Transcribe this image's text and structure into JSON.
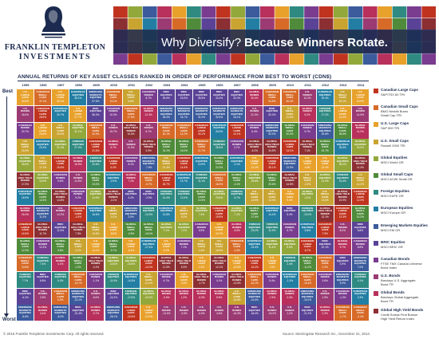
{
  "brand": {
    "line1": "FRANKLIN TEMPLETON",
    "line2": "INVESTMENTS"
  },
  "banner": {
    "title_light": "Why Diversify?",
    "title_bold": "Because Winners Rotate."
  },
  "heading": "ANNUAL RETURNS OF KEY ASSET CLASSES RANKED IN ORDER OF PERFORMANCE FROM BEST TO WORST (CDN$)",
  "axis": {
    "best": "Best",
    "worst": "Worst"
  },
  "footer": {
    "copyright": "© 2015 Franklin Templeton Investments Corp. All rights reserved.",
    "source": "Source: Morningstar Research Inc., December 31, 2014."
  },
  "colors": {
    "navy": "#1b2a4e",
    "cols": {
      "CLC": "#c0331f",
      "CSC": "#d76a27",
      "USLC": "#e8a12b",
      "USSC": "#c9a431",
      "GE": "#93a83a",
      "GSC": "#4f8b3a",
      "FE": "#2f8a82",
      "EE": "#237ea3",
      "EME": "#3b5b9c",
      "BRIC": "#5a4396",
      "CB": "#7a3c8f",
      "USB": "#9b3a73",
      "GB": "#b8305b",
      "GHY": "#8c2f33"
    }
  },
  "chart_data": {
    "type": "table",
    "title": "ANNUAL RETURNS OF KEY ASSET CLASSES RANKED IN ORDER OF PERFORMANCE FROM BEST TO WORST (CDN$)",
    "years": [
      "1995",
      "1996",
      "1997",
      "1998",
      "1999",
      "2000",
      "2001",
      "2002",
      "2003",
      "2004",
      "2005",
      "2006",
      "2007",
      "2008",
      "2009",
      "2010",
      "2011",
      "2012",
      "2013",
      "2014"
    ],
    "asset_classes": [
      {
        "code": "CLC",
        "short": "CANADIAN\nLARGE\nCAPS",
        "name": "Canadian Large Caps",
        "index": "S&P/TSX 60 TRI"
      },
      {
        "code": "CSC",
        "short": "CANADIAN\nSMALL\nCAPS",
        "name": "Canadian Small Caps",
        "index": "BMO Nesbitt Burns\nSmall Cap TRI"
      },
      {
        "code": "USLC",
        "short": "U.S.\nLARGE\nCAPS",
        "name": "U.S. Large Caps",
        "index": "S&P 500 TRI"
      },
      {
        "code": "USSC",
        "short": "U.S.\nSMALL\nCAPS",
        "name": "U.S. Small Caps",
        "index": "Russell 2000 TRI"
      },
      {
        "code": "GE",
        "short": "GLOBAL\nEQUITIES",
        "name": "Global Equities",
        "index": "MSCI World GR"
      },
      {
        "code": "GSC",
        "short": "GLOBAL\nSMALL\nCAPS",
        "name": "Global Small Caps",
        "index": "MSCI ACWI Small GR"
      },
      {
        "code": "FE",
        "short": "FOREIGN\nEQUITIES",
        "name": "Foreign Equities",
        "index": "MSCI EAFE GR"
      },
      {
        "code": "EE",
        "short": "EUROPEAN\nEQUITIES",
        "name": "European Equities",
        "index": "MSCI Europe GR"
      },
      {
        "code": "EME",
        "short": "EMERGING\nMARKETS\nEQUITIES",
        "name": "Emerging Markets Equities",
        "index": "MSCI EM GR"
      },
      {
        "code": "BRIC",
        "short": "BRIC\nEQUITIES",
        "name": "BRIC Equities",
        "index": "MSCI BRIC GR"
      },
      {
        "code": "CB",
        "short": "CANADIAN\nBONDS",
        "name": "Canadian Bonds",
        "index": "FTSE TMX Canada Universe\nBond Index"
      },
      {
        "code": "USB",
        "short": "U.S.\nBONDS",
        "name": "U.S. Bonds",
        "index": "Barclays U.S. Aggregate\nBond TR"
      },
      {
        "code": "GB",
        "short": "GLOBAL\nBONDS",
        "name": "Global Bonds",
        "index": "Barclays Global Aggregate\nBond TR"
      },
      {
        "code": "GHY",
        "short": "GLOBAL\nHIGH YIELD\nBONDS",
        "name": "Global High Yield Bonds",
        "index": "Credit Suisse First Boston\nHigh Yield Return Index"
      }
    ],
    "rankings": [
      {
        "year": "1995",
        "order": [
          "USLC",
          "USB",
          "CB",
          "USSC",
          "GE",
          "GHY",
          "EE",
          "GB",
          "CLC",
          "GSC",
          "CSC",
          "FE",
          "BRIC",
          "EME"
        ],
        "returns": [
          "33.9%",
          "26.6%",
          "20.7%",
          "24.9%",
          "18.5%",
          "17.0%",
          "16.9%",
          "16.4%",
          "14.5%",
          "12.3%",
          "10.6%",
          "7.7%",
          "-6.2%",
          "-8.6%"
        ]
      },
      {
        "year": "1996",
        "order": [
          "CSC",
          "CLC",
          "USLC",
          "EE",
          "USSC",
          "GE",
          "GSC",
          "EME",
          "GHY",
          "CB",
          "FE",
          "BRIC",
          "USB",
          "GB"
        ],
        "returns": [
          "37.1%",
          "28.6%",
          "23.6%",
          "23.3%",
          "17.1%",
          "14.9%",
          "12.6%",
          "11.3%",
          "11.7%",
          "12.3%",
          "7.4%",
          "6.8%",
          "3.9%",
          "3.4%"
        ]
      },
      {
        "year": "1997",
        "order": [
          "USLC",
          "EE",
          "USSC",
          "GE",
          "CLC",
          "CB",
          "GHY",
          "USB",
          "BRIC",
          "GSC",
          "GB",
          "FE",
          "CSC",
          "EME"
        ],
        "returns": [
          "39.1%",
          "29.7%",
          "26.6%",
          "21.3%",
          "15.6%",
          "9.6%",
          "14.8%",
          "14.2%",
          "11.5%",
          "5.8%",
          "4.1%",
          "6.3%",
          "6.9%",
          "-8.2%"
        ]
      },
      {
        "year": "1998",
        "order": [
          "EE",
          "USLC",
          "GE",
          "FE",
          "GB",
          "USB",
          "CB",
          "CLC",
          "GHY",
          "USSC",
          "GSC",
          "CSC",
          "EME",
          "BRIC"
        ],
        "returns": [
          "38.1%",
          "37.7%",
          "31.1%",
          "27.0%",
          "16.6%",
          "14.5%",
          "9.2%",
          "-1.6%",
          "7.3%",
          "4.1%",
          "1.2%",
          "-16.7%",
          "-22.1%",
          "-31.4%"
        ]
      },
      {
        "year": "1999",
        "order": [
          "EME",
          "BRIC",
          "CSC",
          "CLC",
          "FE",
          "GSC",
          "GE",
          "EE",
          "USSC",
          "USLC",
          "GHY",
          "CB",
          "USB",
          "GB"
        ],
        "returns": [
          "57.6%",
          "56.3%",
          "20.3%",
          "31.6%",
          "20.6%",
          "23.0%",
          "14.6%",
          "16.6%",
          "14.5%",
          "14.1%",
          "-2.4%",
          "-1.1%",
          "-5.6%",
          "-9.7%"
        ]
      },
      {
        "year": "2000",
        "order": [
          "CSC",
          "CB",
          "USB",
          "GB",
          "CLC",
          "EE",
          "GHY",
          "USSC",
          "USLC",
          "GSC",
          "GE",
          "FE",
          "BRIC",
          "EME"
        ],
        "returns": [
          "13.1%",
          "10.3%",
          "15.7%",
          "8.7%",
          "6.2%",
          "-2.9%",
          "-3.1%",
          "-0.2%",
          "-5.5%",
          "-9.7%",
          "-10.6%",
          "-11.6%",
          "-24.3%",
          "-28.1%"
        ]
      },
      {
        "year": "2001",
        "order": [
          "USSC",
          "CSC",
          "GHY",
          "USB",
          "CB",
          "GB",
          "BRIC",
          "EME",
          "GSC",
          "USLC",
          "GE",
          "EE",
          "FE",
          "CLC"
        ],
        "returns": [
          "8.8%",
          "17.5%",
          "10.6%",
          "11.0%",
          "8.1%",
          "7.1%",
          "4.2%",
          "3.0%",
          "-0.5%",
          "-6.4%",
          "-10.6%",
          "-14.3%",
          "-17.6%",
          "-12.6%"
        ]
      },
      {
        "year": "2002",
        "order": [
          "CB",
          "GB",
          "USB",
          "GHY",
          "EME",
          "CSC",
          "BRIC",
          "FE",
          "GSC",
          "EE",
          "CLC",
          "USSC",
          "GE",
          "USLC"
        ],
        "returns": [
          "8.7%",
          "12.3%",
          "8.7%",
          "3.9%",
          "-7.6%",
          "-0.7%",
          "-2.5%",
          "-14.9%",
          "-16.0%",
          "-17.4%",
          "-14.0%",
          "-21.4%",
          "-20.2%",
          "-22.9%"
        ]
      },
      {
        "year": "2003",
        "order": [
          "BRIC",
          "EME",
          "CSC",
          "GSC",
          "USSC",
          "CLC",
          "FE",
          "EE",
          "GE",
          "USLC",
          "GHY",
          "CB",
          "GB",
          "USB"
        ],
        "returns": [
          "49.6%",
          "28.3%",
          "40.1%",
          "31.2%",
          "21.4%",
          "26.7%",
          "14.4%",
          "13.8%",
          "7.1%",
          "5.3%",
          "11.5%",
          "6.7%",
          "-0.6%",
          "-13.4%"
        ]
      },
      {
        "year": "2004",
        "order": [
          "BRIC",
          "EME",
          "CSC",
          "GSC",
          "CLC",
          "EE",
          "FE",
          "USSC",
          "GE",
          "CB",
          "GHY",
          "USLC",
          "GB",
          "USB"
        ],
        "returns": [
          "16.9%",
          "16.7%",
          "14.2%",
          "15.0%",
          "14.5%",
          "13.7%",
          "12.0%",
          "9.2%",
          "7.0%",
          "7.1%",
          "5.3%",
          "3.3%",
          "1.2%",
          "-3.5%"
        ]
      },
      {
        "year": "2005",
        "order": [
          "BRIC",
          "EME",
          "CLC",
          "CSC",
          "EE",
          "FE",
          "GSC",
          "GE",
          "CB",
          "USSC",
          "USLC",
          "GHY",
          "GB",
          "USB"
        ],
        "returns": [
          "45.5%",
          "31.0%",
          "24.1%",
          "21.7%",
          "10.9%",
          "11.1%",
          "10.3%",
          "7.4%",
          "6.5%",
          "1.6%",
          "2.3%",
          "-1.7%",
          "-5.5%",
          "-0.6%"
        ]
      },
      {
        "year": "2006",
        "order": [
          "BRIC",
          "EME",
          "EE",
          "FE",
          "GSC",
          "CSC",
          "GE",
          "CLC",
          "USLC",
          "USSC",
          "GHY",
          "CB",
          "GB",
          "USB"
        ],
        "returns": [
          "43.4%",
          "32.6%",
          "33.9%",
          "26.9%",
          "22.3%",
          "18.3%",
          "20.6%",
          "19.5%",
          "15.7%",
          "16.9%",
          "12.1%",
          "4.1%",
          "5.9%",
          "4.6%"
        ]
      },
      {
        "year": "2007",
        "order": [
          "BRIC",
          "EME",
          "CLC",
          "CB",
          "EE",
          "GSC",
          "FE",
          "GE",
          "GB",
          "CSC",
          "USLC",
          "GHY",
          "USSC",
          "USB"
        ],
        "returns": [
          "32.0%",
          "18.1%",
          "10.1%",
          "3.7%",
          "-0.1%",
          "-3.1%",
          "-5.7%",
          "-7.1%",
          "-5.9%",
          "-2.4%",
          "-10.5%",
          "-13.5%",
          "-16.8%",
          "-16.3%"
        ]
      },
      {
        "year": "2008",
        "order": [
          "GB",
          "USB",
          "CB",
          "GHY",
          "USLC",
          "GE",
          "USSC",
          "GSC",
          "FE",
          "EE",
          "CLC",
          "CSC",
          "EME",
          "BRIC"
        ],
        "returns": [
          "30.4%",
          "21.0%",
          "6.4%",
          "-5.2%",
          "-21.2%",
          "-25.8%",
          "-16.9%",
          "-27.6%",
          "-29.2%",
          "-31.5%",
          "-31.0%",
          "-43.1%",
          "-41.6%",
          "-46.3%"
        ]
      },
      {
        "year": "2009",
        "order": [
          "CSC",
          "BRIC",
          "EME",
          "GHY",
          "CLC",
          "GSC",
          "USSC",
          "EE",
          "FE",
          "GE",
          "USLC",
          "CB",
          "GB",
          "USB"
        ],
        "returns": [
          "54.5%",
          "52.3%",
          "52.0%",
          "34.5%",
          "35.1%",
          "25.6%",
          "13.3%",
          "14.4%",
          "11.9%",
          "11.4%",
          "7.6%",
          "5.4%",
          "-7.5%",
          "-15.0%"
        ]
      },
      {
        "year": "2010",
        "order": [
          "CSC",
          "USSC",
          "GSC",
          "CLC",
          "EME",
          "GHY",
          "USLC",
          "BRIC",
          "CB",
          "GE",
          "FE",
          "EE",
          "GB",
          "USB"
        ],
        "returns": [
          "35.3%",
          "21.5%",
          "20.0%",
          "13.1%",
          "13.0%",
          "14.8%",
          "9.4%",
          "6.4%",
          "6.7%",
          "6.5%",
          "2.4%",
          "-1.3%",
          "0.3%",
          "1.1%"
        ]
      },
      {
        "year": "2011",
        "order": [
          "USB",
          "GB",
          "CB",
          "GHY",
          "USLC",
          "USSC",
          "GE",
          "FE",
          "EE",
          "CLC",
          "GSC",
          "CSC",
          "EME",
          "BRIC"
        ],
        "returns": [
          "10.2%",
          "8.2%",
          "9.7%",
          "7.1%",
          "4.6%",
          "-2.2%",
          "-3.2%",
          "-10.0%",
          "-8.8%",
          "-8.7%",
          "-11.2%",
          "-16.4%",
          "-16.2%",
          "-21.2%"
        ]
      },
      {
        "year": "2012",
        "order": [
          "EE",
          "FE",
          "EME",
          "GSC",
          "USLC",
          "GE",
          "USSC",
          "GHY",
          "CLC",
          "BRIC",
          "CSC",
          "CB",
          "USB",
          "GB"
        ],
        "returns": [
          "19.4%",
          "17.2%",
          "15.6%",
          "15.7%",
          "13.4%",
          "13.3%",
          "14.6%",
          "13.1%",
          "7.9%",
          "10.1%",
          "2.2%",
          "3.6%",
          "1.9%",
          "2.2%"
        ]
      },
      {
        "year": "2013",
        "order": [
          "USSC",
          "USLC",
          "GSC",
          "EE",
          "GE",
          "FE",
          "GHY",
          "CLC",
          "USB",
          "GB",
          "BRIC",
          "EME",
          "CB",
          "CSC"
        ],
        "returns": [
          "49.1%",
          "41.3%",
          "36.8%",
          "35.5%",
          "35.2%",
          "31.6%",
          "15.9%",
          "13.3%",
          "8.0%",
          "5.7%",
          "3.9%",
          "3.9%",
          "-1.2%",
          "-1.7%"
        ]
      },
      {
        "year": "2014",
        "order": [
          "USLC",
          "USB",
          "GB",
          "GE",
          "GHY",
          "USSC",
          "CLC",
          "GSC",
          "BRIC",
          "CB",
          "EME",
          "FE",
          "EE",
          "CSC"
        ],
        "returns": [
          "23.9%",
          "14.5%",
          "11.2%",
          "15.0%",
          "11.4%",
          "14.2%",
          "12.3%",
          "10.3%",
          "8.8%",
          "8.8%",
          "7.0%",
          "4.1%",
          "2.3%",
          "-2.4%"
        ]
      }
    ]
  }
}
